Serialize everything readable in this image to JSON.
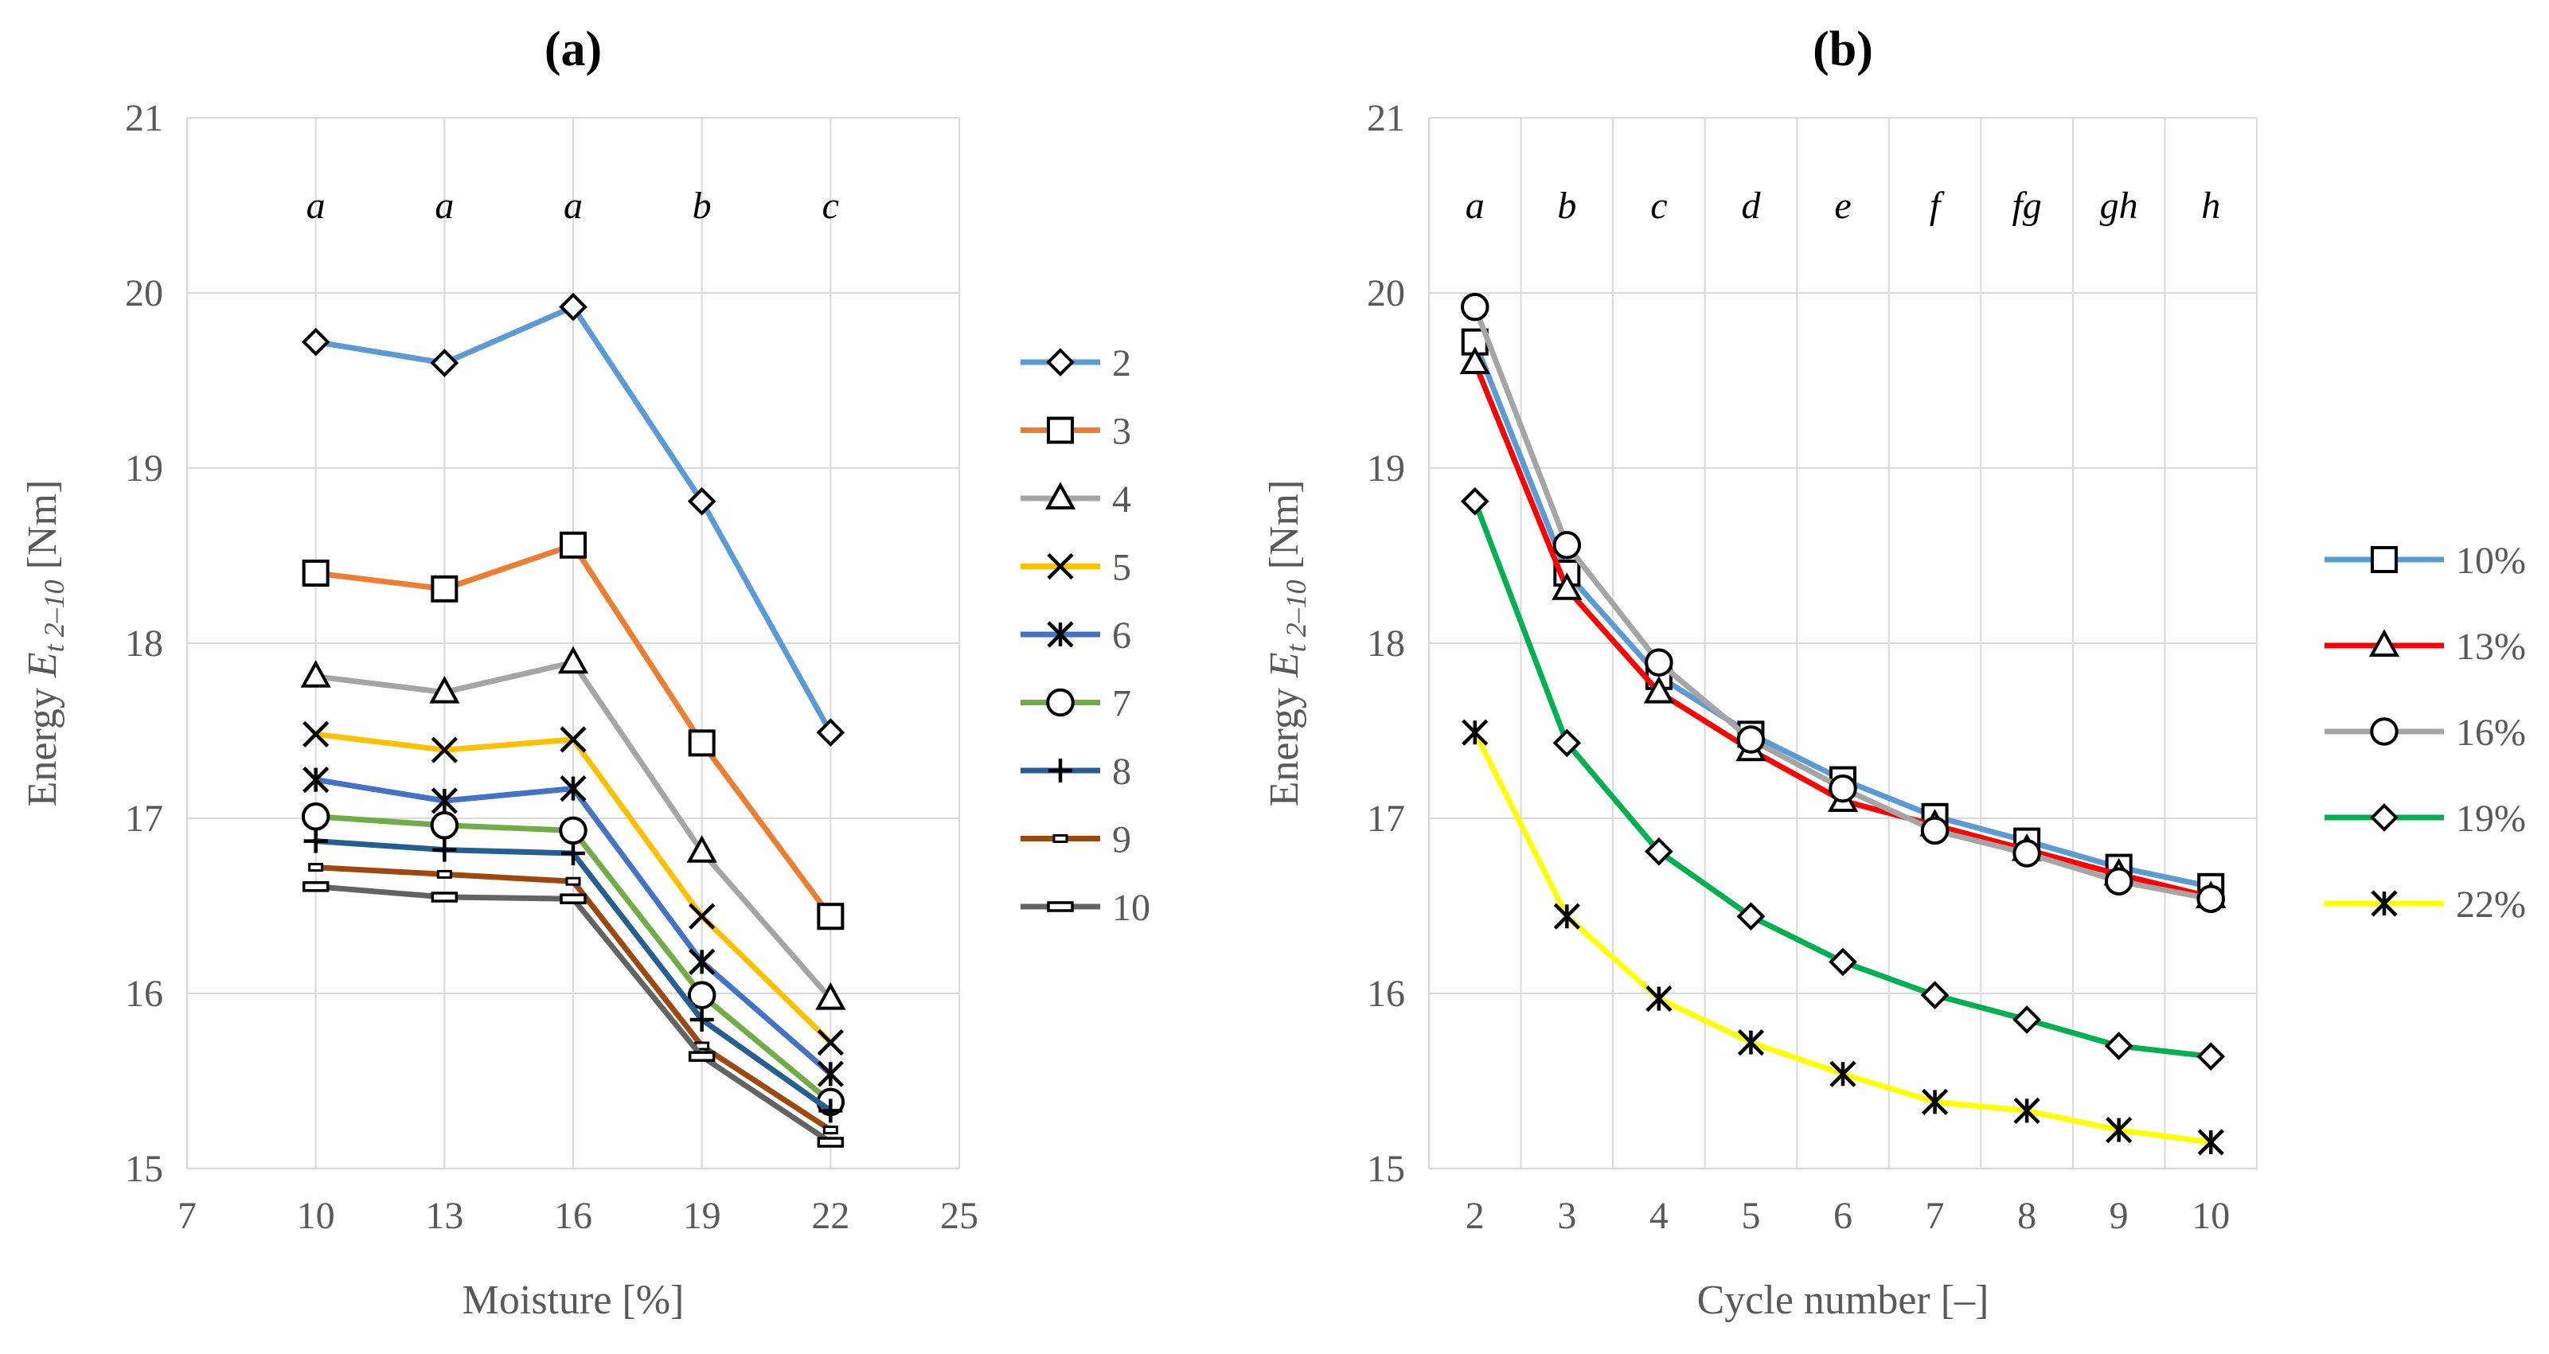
{
  "chart_data": [
    {
      "type": "line",
      "title": "(a)",
      "xlabel": "Moisture [%]",
      "ylabel_prefix": "Energy ",
      "ylabel_var": "E",
      "ylabel_sub": "t 2–10",
      "ylabel_suffix": " [Nm]",
      "xlim": [
        7,
        25
      ],
      "xticks": [
        "7",
        "10",
        "13",
        "16",
        "19",
        "22",
        "25"
      ],
      "ylim": [
        15,
        21
      ],
      "yticks": [
        "15",
        "16",
        "17",
        "18",
        "19",
        "20",
        "21"
      ],
      "grid": true,
      "legend_position": "right",
      "x": [
        10,
        13,
        16,
        19,
        22
      ],
      "significance_labels": [
        "a",
        "a",
        "a",
        "b",
        "c"
      ],
      "series": [
        {
          "name": "2",
          "color": "#5B9BD5",
          "marker": "diamond",
          "values": [
            19.72,
            19.6,
            19.92,
            18.81,
            17.49
          ]
        },
        {
          "name": "3",
          "color": "#ED7D31",
          "marker": "square",
          "values": [
            18.4,
            18.31,
            18.56,
            17.43,
            16.44
          ]
        },
        {
          "name": "4",
          "color": "#A5A5A5",
          "marker": "triangle",
          "values": [
            17.81,
            17.72,
            17.89,
            16.81,
            15.97
          ]
        },
        {
          "name": "5",
          "color": "#FFC000",
          "marker": "x",
          "values": [
            17.48,
            17.39,
            17.45,
            16.44,
            15.72
          ]
        },
        {
          "name": "6",
          "color": "#4472C4",
          "marker": "asterisk",
          "values": [
            17.22,
            17.1,
            17.17,
            16.18,
            15.54
          ]
        },
        {
          "name": "7",
          "color": "#70AD47",
          "marker": "circle",
          "values": [
            17.01,
            16.96,
            16.93,
            15.99,
            15.38
          ]
        },
        {
          "name": "8",
          "color": "#255E91",
          "marker": "plus",
          "values": [
            16.87,
            16.82,
            16.8,
            15.85,
            15.33
          ]
        },
        {
          "name": "9",
          "color": "#9E480E",
          "marker": "dash",
          "values": [
            16.72,
            16.68,
            16.64,
            15.7,
            15.22
          ]
        },
        {
          "name": "10",
          "color": "#636363",
          "marker": "bar",
          "values": [
            16.61,
            16.55,
            16.54,
            15.64,
            15.15
          ]
        }
      ]
    },
    {
      "type": "line",
      "title": "(b)",
      "xlabel": "Cycle number [–]",
      "ylabel_prefix": "Energy ",
      "ylabel_var": "E",
      "ylabel_sub": "t 2–10",
      "ylabel_suffix": " [Nm]",
      "categories": [
        "2",
        "3",
        "4",
        "5",
        "6",
        "7",
        "8",
        "9",
        "10"
      ],
      "ylim": [
        15,
        21
      ],
      "yticks": [
        "15",
        "16",
        "17",
        "18",
        "19",
        "20",
        "21"
      ],
      "grid": true,
      "legend_position": "right",
      "significance_labels": [
        "a",
        "b",
        "c",
        "d",
        "e",
        "f",
        "fg",
        "gh",
        "h"
      ],
      "series": [
        {
          "name": "10%",
          "color": "#5B9BD5",
          "marker": "square",
          "values": [
            19.72,
            18.4,
            17.81,
            17.48,
            17.22,
            17.01,
            16.87,
            16.72,
            16.61
          ]
        },
        {
          "name": "13%",
          "color": "#FF0000",
          "marker": "triangle",
          "values": [
            19.6,
            18.31,
            17.72,
            17.39,
            17.1,
            16.96,
            16.82,
            16.68,
            16.55
          ]
        },
        {
          "name": "16%",
          "color": "#A5A5A5",
          "marker": "circle",
          "values": [
            19.92,
            18.56,
            17.89,
            17.45,
            17.17,
            16.93,
            16.8,
            16.64,
            16.54
          ]
        },
        {
          "name": "19%",
          "color": "#00B050",
          "marker": "diamond",
          "values": [
            18.81,
            17.43,
            16.81,
            16.44,
            16.18,
            15.99,
            15.85,
            15.7,
            15.64
          ]
        },
        {
          "name": "22%",
          "color": "#FFFF00",
          "marker": "asterisk",
          "values": [
            17.49,
            16.44,
            15.97,
            15.72,
            15.54,
            15.38,
            15.33,
            15.22,
            15.15
          ]
        }
      ]
    }
  ]
}
